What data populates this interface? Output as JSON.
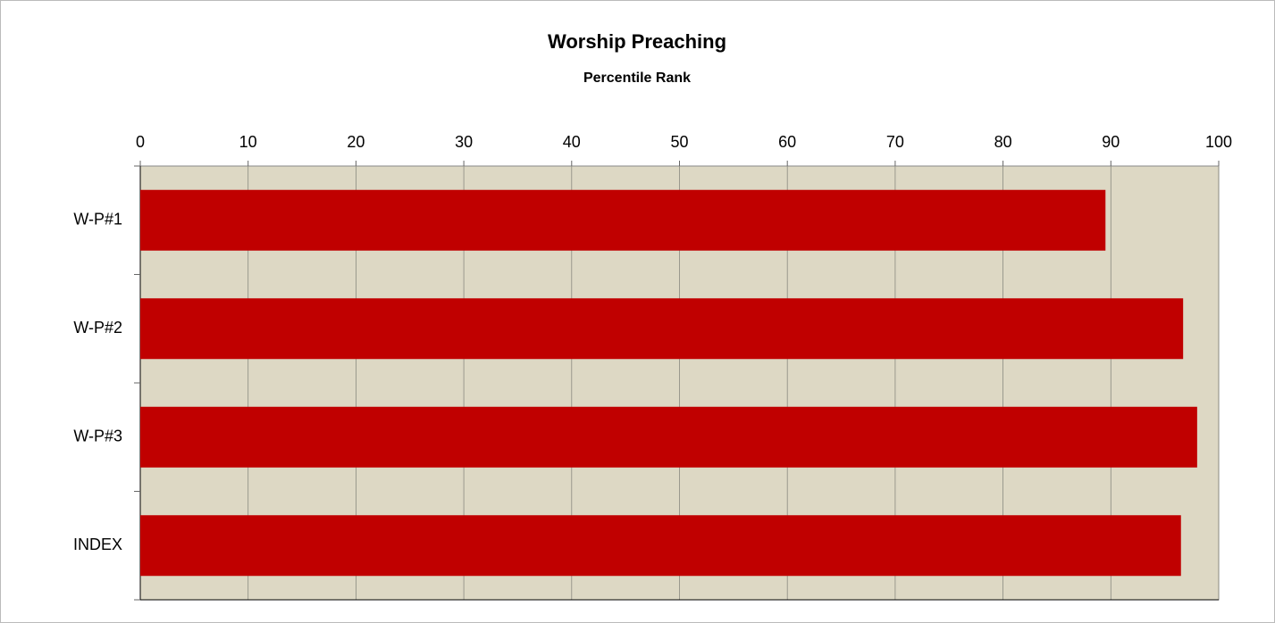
{
  "chart_data": {
    "type": "bar",
    "orientation": "horizontal",
    "title": "Worship Preaching",
    "subtitle": "Percentile Rank",
    "categories": [
      "W-P#1",
      "W-P#2",
      "W-P#3",
      "INDEX"
    ],
    "values": [
      89.5,
      96.7,
      98,
      96.5
    ],
    "color": "#c00000",
    "plot_background": "#ddd8c4",
    "xlim": [
      0,
      100
    ],
    "xticks": [
      0,
      10,
      20,
      30,
      40,
      50,
      60,
      70,
      80,
      90,
      100
    ],
    "grid": true
  }
}
